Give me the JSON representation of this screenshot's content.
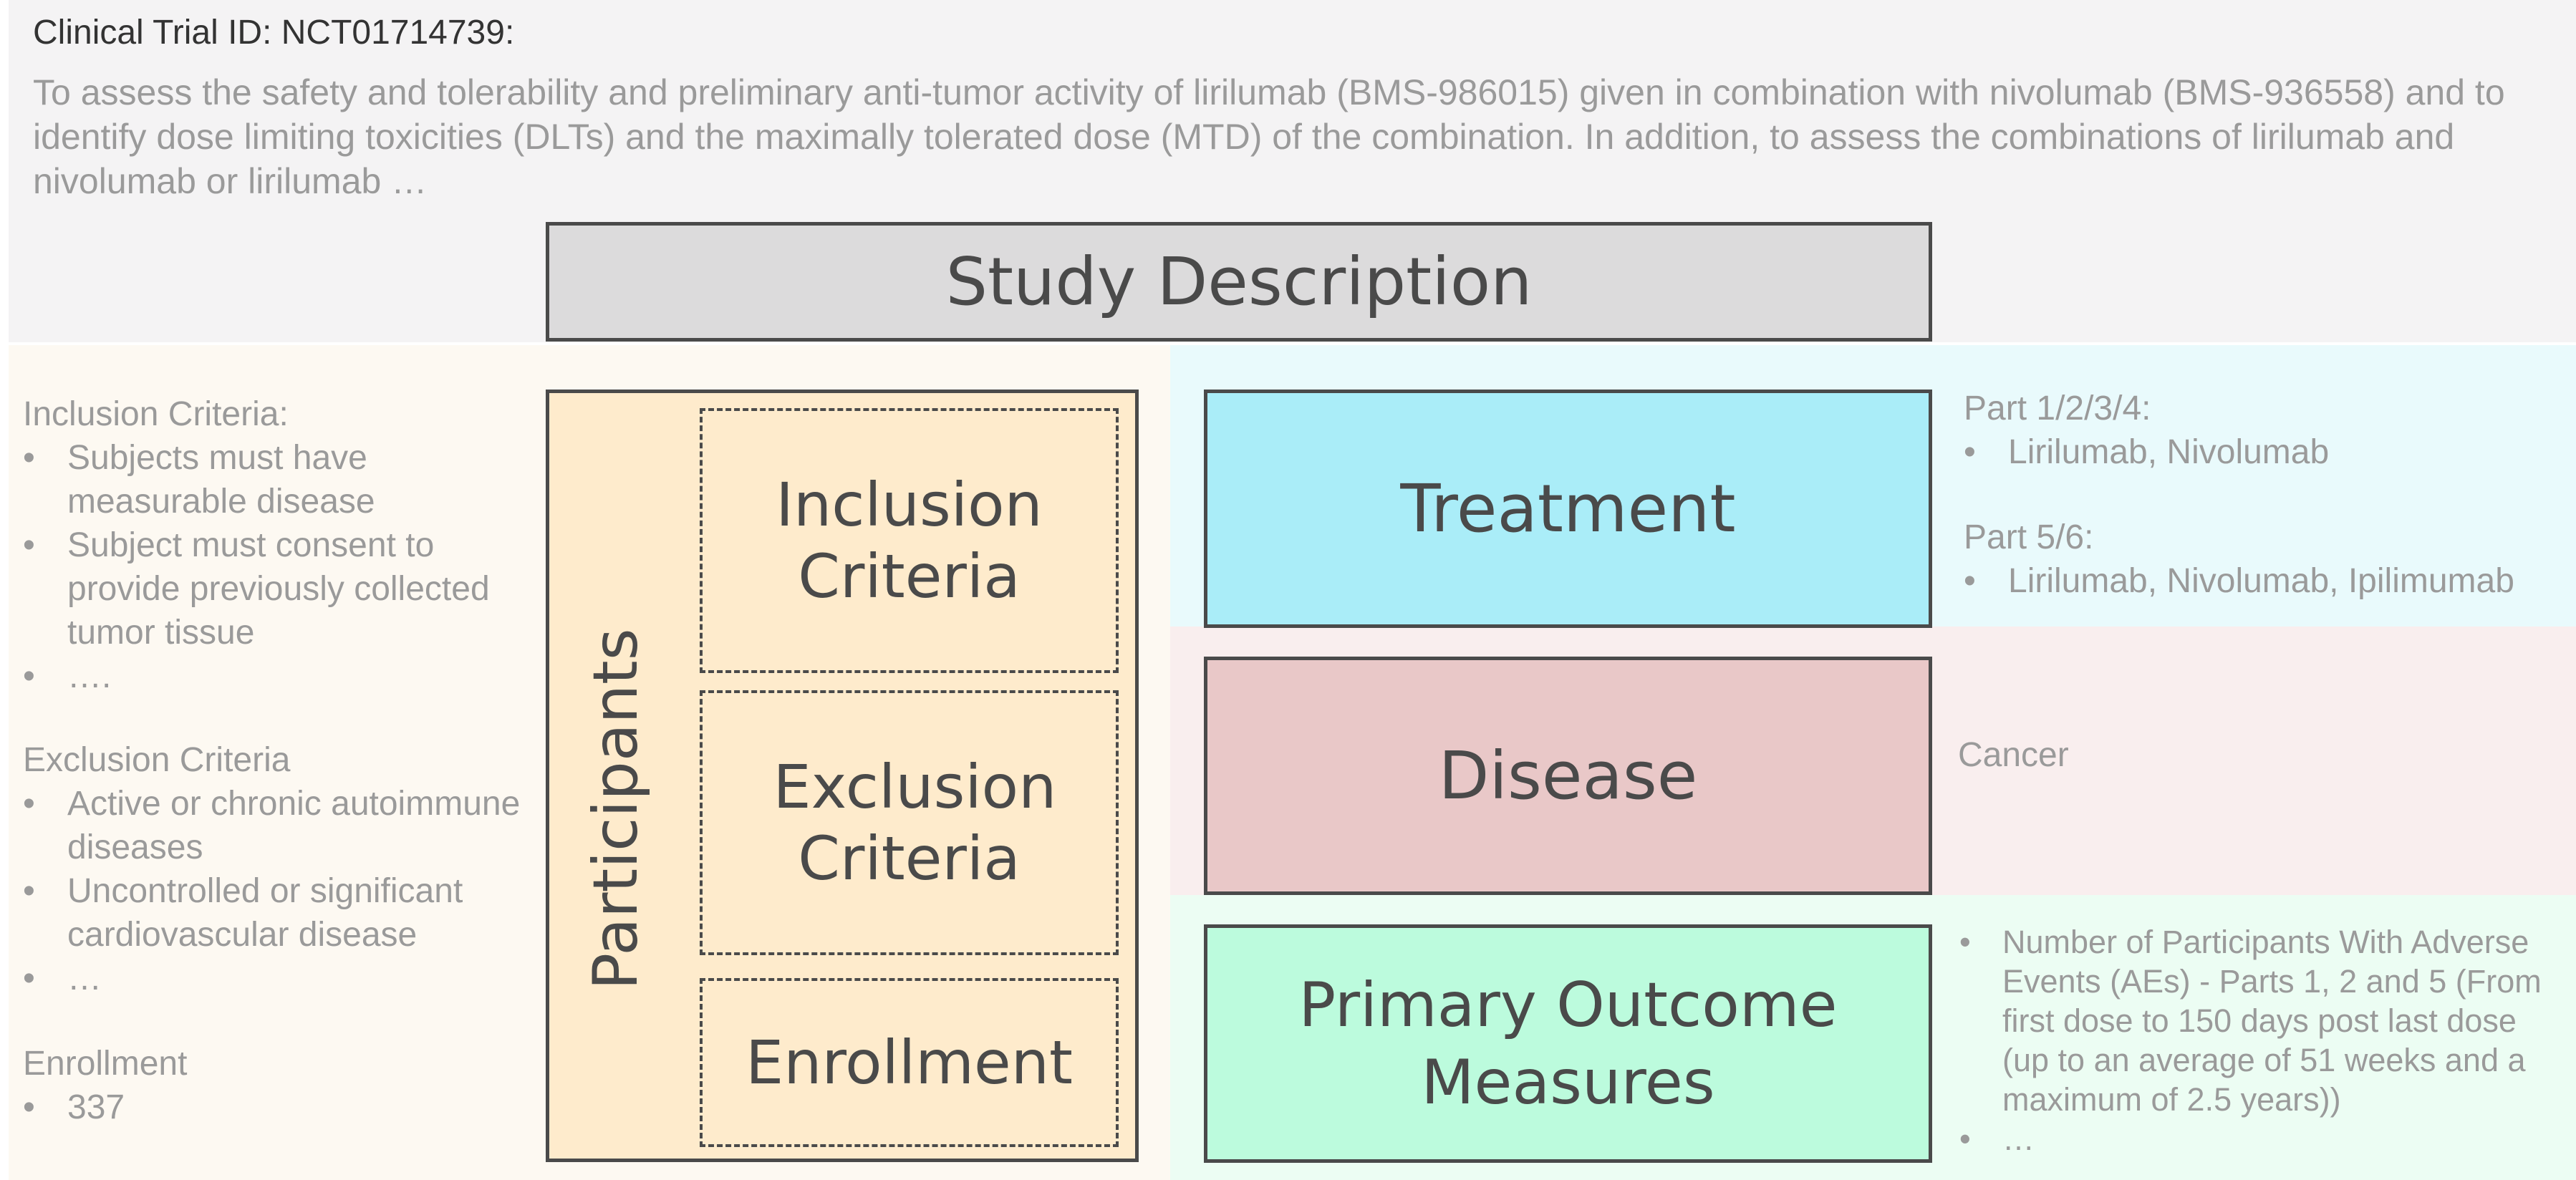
{
  "trial_id": "Clinical Trial ID: NCT01714739:",
  "summary": "To assess the safety and tolerability and preliminary anti-tumor activity of lirilumab (BMS-986015) given in combination with nivolumab (BMS-936558) and to identify dose limiting toxicities (DLTs) and the maximally tolerated dose (MTD) of the combination. In addition, to assess the combinations of lirilumab and nivolumab or lirilumab …",
  "study_description": "Study Description",
  "participants": {
    "label": "Participants",
    "inclusion_label": "Inclusion Criteria",
    "exclusion_label": "Exclusion Criteria",
    "enrollment_label": "Enrollment"
  },
  "left_text": {
    "inclusion_heading": "Inclusion Criteria:",
    "inclusion_items": [
      "Subjects must have measurable disease",
      "Subject must consent to provide previously collected tumor tissue",
      "…."
    ],
    "exclusion_heading": "Exclusion Criteria",
    "exclusion_items": [
      "Active or chronic autoimmune diseases",
      "Uncontrolled or significant cardiovascular disease",
      "…"
    ],
    "enrollment_heading": "Enrollment",
    "enrollment_items": [
      "337"
    ]
  },
  "treatment": {
    "label": "Treatment",
    "part1_heading": "Part 1/2/3/4:",
    "part1_items": [
      "Lirilumab, Nivolumab"
    ],
    "part2_heading": "Part 5/6:",
    "part2_items": [
      "Lirilumab, Nivolumab, Ipilimumab"
    ]
  },
  "disease": {
    "label": "Disease",
    "value": "Cancer"
  },
  "outcome": {
    "label": "Primary Outcome Measures",
    "items": [
      "Number of Participants With Adverse Events (AEs) - Parts 1, 2 and 5 (From first dose to 150 days post last dose (up to an average of 51 weeks and a maximum of 2.5 years))",
      "…"
    ]
  }
}
